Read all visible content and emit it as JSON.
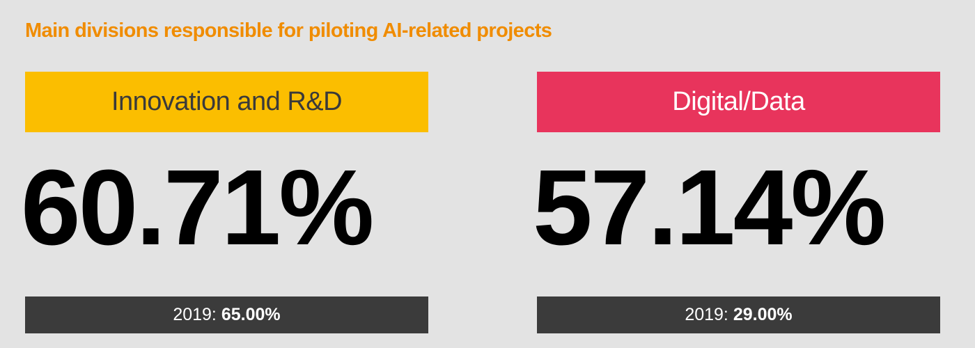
{
  "title": "Main divisions responsible for piloting AI-related projects",
  "colors": {
    "background": "#e3e3e3",
    "title": "#f08c00",
    "innovation_banner": "#fbbe00",
    "innovation_banner_text": "#3a3a3a",
    "digital_banner": "#e8345c",
    "digital_banner_text": "#ffffff",
    "footer_bar": "#3b3b3b"
  },
  "chart_data": {
    "type": "table",
    "title": "Main divisions responsible for piloting AI-related projects",
    "columns": [
      "Division",
      "Value",
      "2019"
    ],
    "rows": [
      {
        "division": "Innovation and R&D",
        "value": 60.71,
        "value_2019": 65.0
      },
      {
        "division": "Digital/Data",
        "value": 57.14,
        "value_2019": 29.0
      }
    ]
  },
  "cards": [
    {
      "division": "Innovation and R&D",
      "value_label": "60.71%",
      "prev_prefix": "2019:",
      "prev_value_label": "65.00%"
    },
    {
      "division": "Digital/Data",
      "value_label": "57.14%",
      "prev_prefix": "2019:",
      "prev_value_label": "29.00%"
    }
  ]
}
